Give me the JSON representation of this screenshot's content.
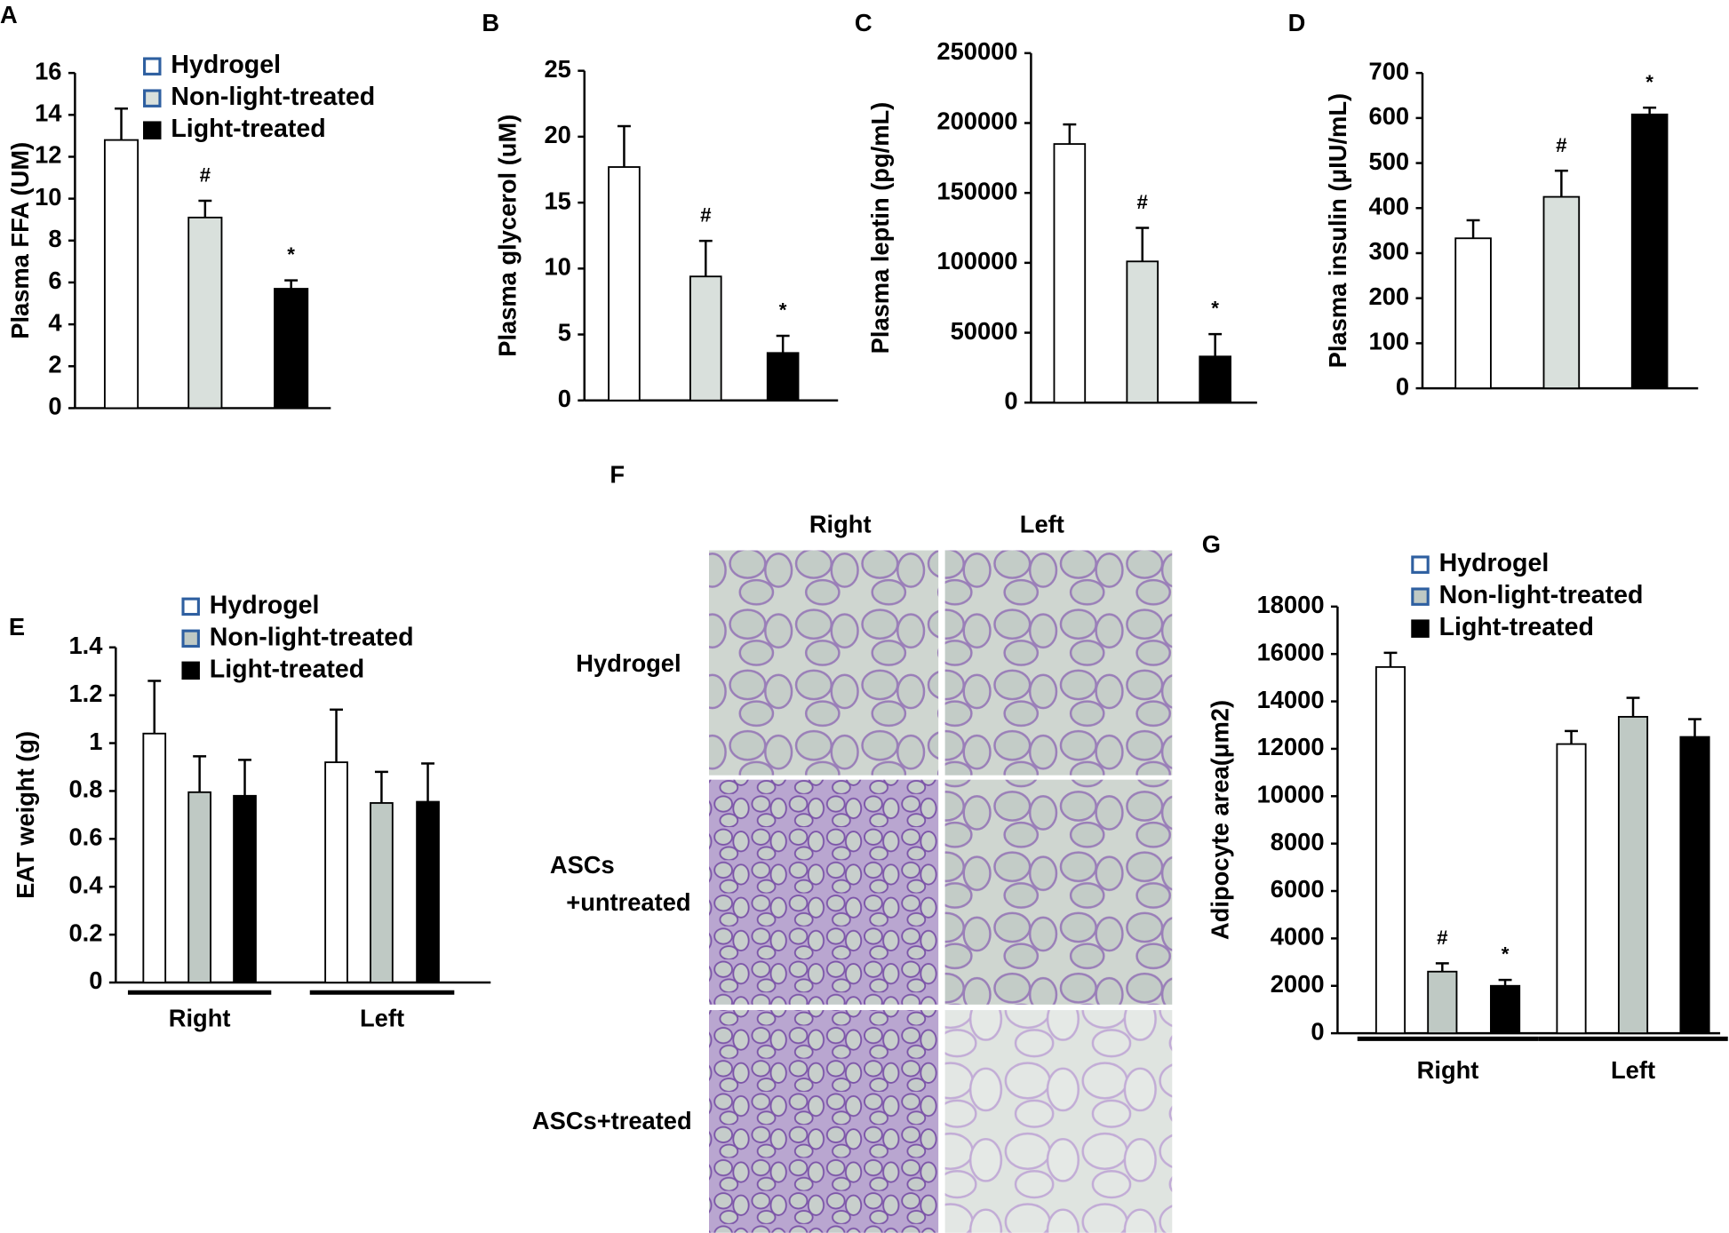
{
  "chart_data": [
    {
      "type": "bar",
      "panel_label": "A",
      "y_label": "Plasma FFA (UM)",
      "categories": [
        null
      ],
      "ylim": [
        0,
        16
      ],
      "yticks": [
        0,
        2,
        4,
        6,
        8,
        10,
        12,
        14,
        16
      ],
      "legend": true,
      "series": [
        {
          "name": "Hydrogel",
          "color": "#ffffff",
          "values": [
            12.8
          ],
          "errors": [
            1.5
          ],
          "annotations": [
            null
          ]
        },
        {
          "name": "Non-light-treated",
          "color": "#d9e0dc",
          "values": [
            9.1
          ],
          "errors": [
            0.8
          ],
          "annotations": [
            "#"
          ]
        },
        {
          "name": "Light-treated",
          "color": "#000000",
          "values": [
            5.7
          ],
          "errors": [
            0.4
          ],
          "annotations": [
            "*"
          ]
        }
      ]
    },
    {
      "type": "bar",
      "panel_label": "B",
      "y_label": "Plasma glycerol (uM)",
      "categories": [
        null
      ],
      "ylim": [
        0,
        25
      ],
      "yticks": [
        0,
        5,
        10,
        15,
        20,
        25
      ],
      "legend": false,
      "series": [
        {
          "color": "#ffffff",
          "values": [
            17.7
          ],
          "errors": [
            3.1
          ],
          "annotations": [
            null
          ]
        },
        {
          "color": "#d9e0dc",
          "values": [
            9.4
          ],
          "errors": [
            2.7
          ],
          "annotations": [
            "#"
          ]
        },
        {
          "color": "#000000",
          "values": [
            3.6
          ],
          "errors": [
            1.3
          ],
          "annotations": [
            "*"
          ]
        }
      ]
    },
    {
      "type": "bar",
      "panel_label": "C",
      "y_label": "Plasma leptin (pg/mL)",
      "categories": [
        null
      ],
      "ylim": [
        0,
        250000
      ],
      "yticks": [
        0,
        50000,
        100000,
        150000,
        200000,
        250000
      ],
      "legend": false,
      "series": [
        {
          "color": "#ffffff",
          "values": [
            185000
          ],
          "errors": [
            14000
          ],
          "annotations": [
            null
          ]
        },
        {
          "color": "#d9e0dc",
          "values": [
            101000
          ],
          "errors": [
            24000
          ],
          "annotations": [
            "#"
          ]
        },
        {
          "color": "#000000",
          "values": [
            33000
          ],
          "errors": [
            16000
          ],
          "annotations": [
            "*"
          ]
        }
      ]
    },
    {
      "type": "bar",
      "panel_label": "D",
      "y_label": "Plasma insulin (μIU/mL)",
      "categories": [
        null
      ],
      "ylim": [
        0,
        700
      ],
      "yticks": [
        0,
        100,
        200,
        300,
        400,
        500,
        600,
        700
      ],
      "legend": false,
      "series": [
        {
          "color": "#ffffff",
          "values": [
            333
          ],
          "errors": [
            40
          ],
          "annotations": [
            null
          ]
        },
        {
          "color": "#d9e0dc",
          "values": [
            425
          ],
          "errors": [
            58
          ],
          "annotations": [
            "#"
          ]
        },
        {
          "color": "#000000",
          "values": [
            608
          ],
          "errors": [
            15
          ],
          "annotations": [
            "*"
          ]
        }
      ]
    },
    {
      "type": "bar",
      "panel_label": "E",
      "y_label": "EAT weight (g)",
      "categories": [
        "Right",
        "Left"
      ],
      "ylim": [
        0,
        1.4
      ],
      "yticks": [
        0,
        0.2,
        0.4,
        0.6,
        0.8,
        1,
        1.2,
        1.4
      ],
      "legend": true,
      "series": [
        {
          "name": "Hydrogel",
          "color": "#ffffff",
          "values": [
            1.04,
            0.92
          ],
          "errors": [
            0.22,
            0.22
          ],
          "annotations": [
            null,
            null
          ]
        },
        {
          "name": "Non-light-treated",
          "color": "#bfc9c4",
          "values": [
            0.795,
            0.75
          ],
          "errors": [
            0.15,
            0.13
          ],
          "annotations": [
            null,
            null
          ]
        },
        {
          "name": "Light-treated",
          "color": "#000000",
          "values": [
            0.78,
            0.755
          ],
          "errors": [
            0.15,
            0.16
          ],
          "annotations": [
            null,
            null
          ]
        }
      ]
    },
    {
      "type": "bar",
      "panel_label": "G",
      "y_label": "Adipocyte area(μm2)",
      "categories": [
        "Right",
        "Left"
      ],
      "ylim": [
        0,
        18000
      ],
      "yticks": [
        0,
        2000,
        4000,
        6000,
        8000,
        10000,
        12000,
        14000,
        16000,
        18000
      ],
      "legend": true,
      "series": [
        {
          "name": "Hydrogel",
          "color": "#ffffff",
          "values": [
            15450,
            12200
          ],
          "errors": [
            600,
            550
          ],
          "annotations": [
            null,
            null
          ]
        },
        {
          "name": "Non-light-treated",
          "color": "#bfc9c4",
          "values": [
            2600,
            13350
          ],
          "errors": [
            350,
            800
          ],
          "annotations": [
            "#",
            null
          ]
        },
        {
          "name": "Light-treated",
          "color": "#000000",
          "values": [
            2000,
            12500
          ],
          "errors": [
            250,
            750
          ],
          "annotations": [
            "*",
            null
          ]
        }
      ]
    }
  ],
  "histology": {
    "panel_label": "F",
    "columns": [
      "Right",
      "Left"
    ],
    "rows": [
      [
        "Hydrogel"
      ],
      [
        "ASCs",
        "+untreated"
      ],
      [
        "ASCs+treated"
      ]
    ]
  }
}
